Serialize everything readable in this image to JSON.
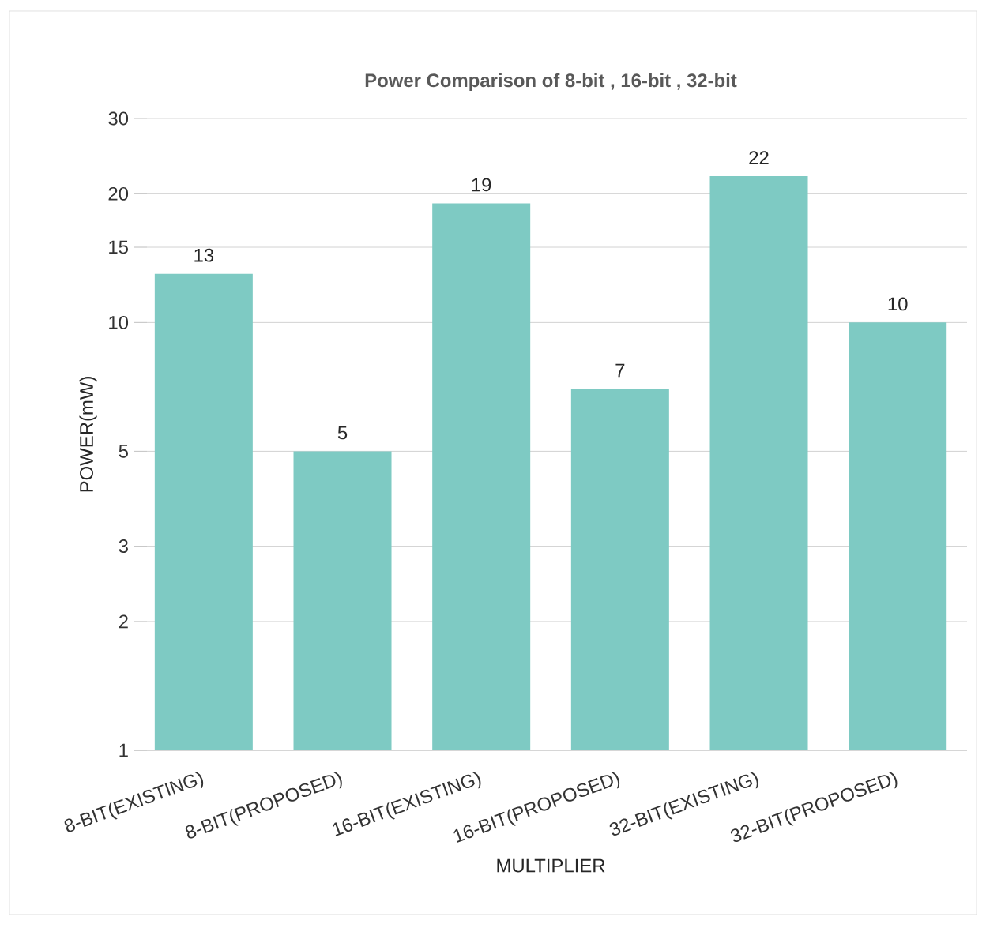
{
  "chart_data": {
    "type": "bar",
    "title": "Power Comparison of  8-bit , 16-bit , 32-bit",
    "xlabel": "MULTIPLIER",
    "ylabel": "POWER(mW)",
    "categories": [
      "8-BIT(EXISTING)",
      "8-BIT(PROPOSED)",
      "16-BIT(EXISTING)",
      "16-BIT(PROPOSED)",
      "32-BIT(EXISTING)",
      "32-BIT(PROPOSED)"
    ],
    "values": [
      13,
      5,
      19,
      7,
      22,
      10
    ],
    "color": "#7ecac3",
    "log": "y",
    "ylim": [
      1,
      30
    ],
    "yticks": [
      1,
      2,
      3,
      5,
      10,
      15,
      20,
      30
    ],
    "grid": "y",
    "data_labels": true,
    "legend": false
  }
}
